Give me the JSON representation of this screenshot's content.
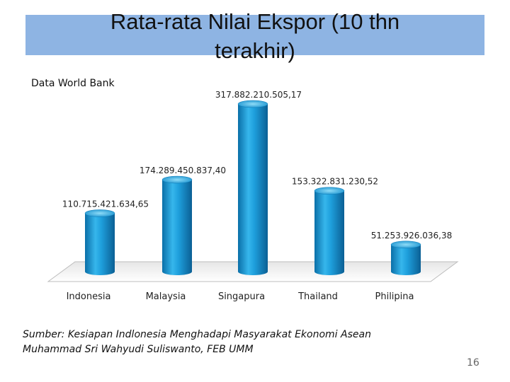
{
  "slide": {
    "title_line1": "Rata-rata Nilai Ekspor (10 thn",
    "title_line2": "terakhir)",
    "subtitle": "Data World Bank",
    "source_line1": "Sumber: Kesiapan Indlonesia Menghadapi Masyarakat Ekonomi Asean",
    "source_line2": "Muhammad Sri Wahyudi Suliswanto, FEB UMM",
    "page_number": "16",
    "band_color": "#8eb4e3"
  },
  "chart_data": {
    "type": "bar",
    "categories": [
      "Indonesia",
      "Malaysia",
      "Singapura",
      "Thailand",
      "Philipina"
    ],
    "values": [
      110715421634.65,
      174289450837.4,
      317882210505.17,
      153322831230.52,
      51253926036.38
    ],
    "data_labels": [
      "110.715.421.634,65",
      "174.289.450.837,40",
      "317.882.210.505,17",
      "153.322.831.230,52",
      "51.253.926.036,38"
    ],
    "title": "",
    "xlabel": "",
    "ylabel": "",
    "ylim": [
      0,
      317882210505.17
    ],
    "grid": false,
    "legend": "none",
    "style": "3d-cylinder",
    "bar_color": "#1e9fdc",
    "bar_dark": "#0a6fa8",
    "bar_light": "#7fd3f5"
  }
}
